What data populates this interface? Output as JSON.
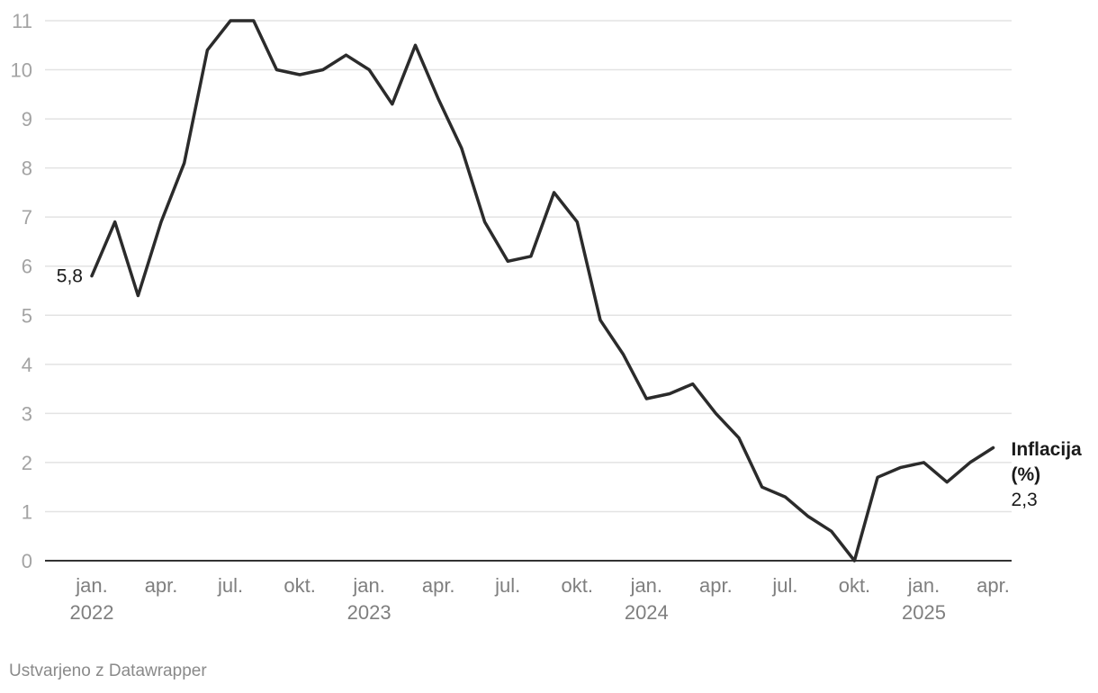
{
  "chart_data": {
    "type": "line",
    "x": [
      "2022-01",
      "2022-02",
      "2022-03",
      "2022-04",
      "2022-05",
      "2022-06",
      "2022-07",
      "2022-08",
      "2022-09",
      "2022-10",
      "2022-11",
      "2022-12",
      "2023-01",
      "2023-02",
      "2023-03",
      "2023-04",
      "2023-05",
      "2023-06",
      "2023-07",
      "2023-08",
      "2023-09",
      "2023-10",
      "2023-11",
      "2023-12",
      "2024-01",
      "2024-02",
      "2024-03",
      "2024-04",
      "2024-05",
      "2024-06",
      "2024-07",
      "2024-08",
      "2024-09",
      "2024-10",
      "2024-11",
      "2024-12",
      "2025-01",
      "2025-02",
      "2025-03",
      "2025-04"
    ],
    "series": [
      {
        "name": "Inflacija (%)",
        "values": [
          5.8,
          6.9,
          5.4,
          6.9,
          8.1,
          10.4,
          11.0,
          11.0,
          10.0,
          9.9,
          10.0,
          10.3,
          10.0,
          9.3,
          10.5,
          9.4,
          8.4,
          6.9,
          6.1,
          6.2,
          7.5,
          6.9,
          4.9,
          4.2,
          3.3,
          3.4,
          3.6,
          3.0,
          2.5,
          1.5,
          1.3,
          0.9,
          0.6,
          0.0,
          1.7,
          1.9,
          2.0,
          1.6,
          2.0,
          2.3
        ]
      }
    ],
    "ylim": [
      0,
      11
    ],
    "yticks": [
      "0",
      "1",
      "2",
      "3",
      "4",
      "5",
      "6",
      "7",
      "8",
      "9",
      "10",
      "11"
    ],
    "xticks": [
      {
        "x": "2022-01",
        "label": "jan.",
        "year": "2022"
      },
      {
        "x": "2022-04",
        "label": "apr.",
        "year": ""
      },
      {
        "x": "2022-07",
        "label": "jul.",
        "year": ""
      },
      {
        "x": "2022-10",
        "label": "okt.",
        "year": ""
      },
      {
        "x": "2023-01",
        "label": "jan.",
        "year": "2023"
      },
      {
        "x": "2023-04",
        "label": "apr.",
        "year": ""
      },
      {
        "x": "2023-07",
        "label": "jul.",
        "year": ""
      },
      {
        "x": "2023-10",
        "label": "okt.",
        "year": ""
      },
      {
        "x": "2024-01",
        "label": "jan.",
        "year": "2024"
      },
      {
        "x": "2024-04",
        "label": "apr.",
        "year": ""
      },
      {
        "x": "2024-07",
        "label": "jul.",
        "year": ""
      },
      {
        "x": "2024-10",
        "label": "okt.",
        "year": ""
      },
      {
        "x": "2025-01",
        "label": "jan.",
        "year": "2025"
      },
      {
        "x": "2025-04",
        "label": "apr.",
        "year": ""
      }
    ],
    "start_label": "5,8",
    "end_label_name_line1": "Inflacija",
    "end_label_name_line2": "(%)",
    "end_label_value": "2,3",
    "grid": true,
    "line_color": "#2b2b2b"
  },
  "footer": {
    "credit": "Ustvarjeno z Datawrapper"
  }
}
